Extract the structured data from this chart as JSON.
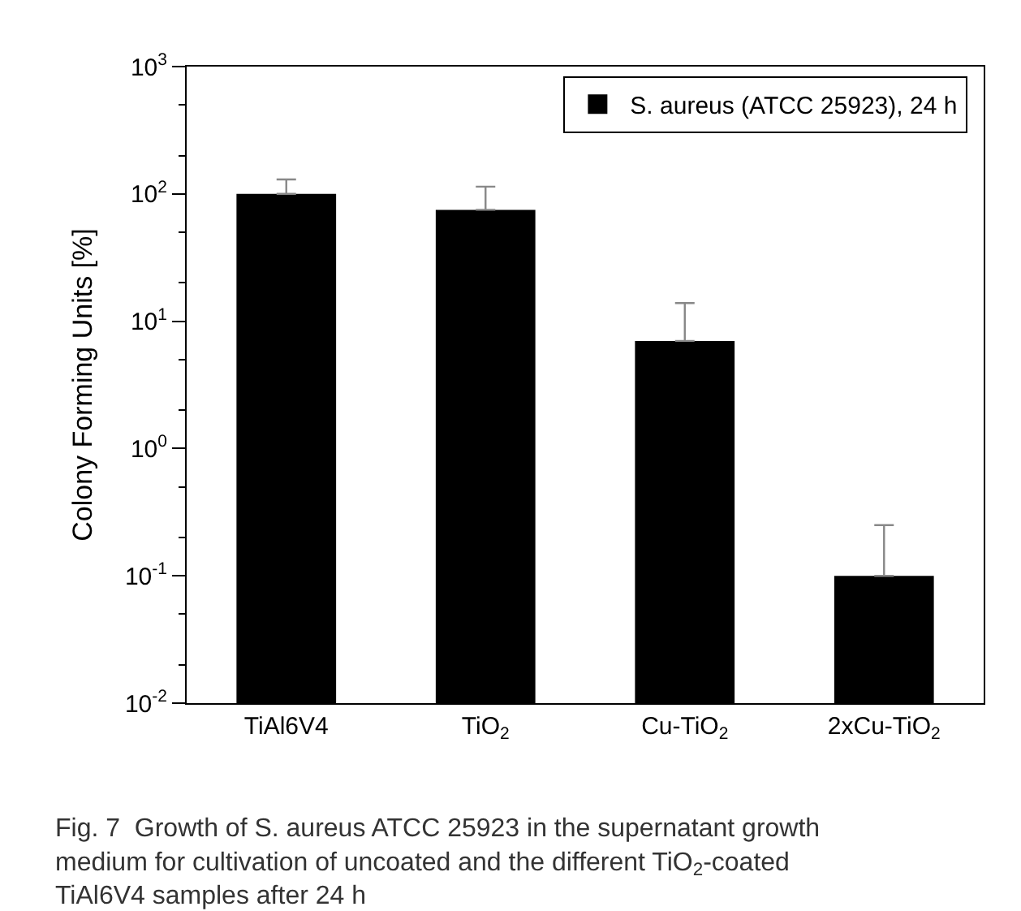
{
  "chart_data": {
    "type": "bar",
    "ylabel": "Colony Forming Units [%]",
    "log": "y",
    "categories": [
      "TiAl6V4",
      "TiO$_{2}$",
      "Cu-TiO$_{2}$",
      "2xCu-TiO$_{2}$"
    ],
    "series": [
      {
        "name": "S. aureus (ATCC 25923), 24 h",
        "color": "#000000",
        "values": [
          100,
          75,
          7.0,
          0.1
        ],
        "errors": [
          [
            100,
            130
          ],
          [
            75,
            114
          ],
          [
            7.0,
            13.9
          ],
          [
            0.1,
            0.25
          ]
        ]
      }
    ],
    "ylim": [
      0.01,
      1000
    ],
    "yticks": [
      {
        "value": 0.01,
        "label": "10$^{-2}$"
      },
      {
        "value": 0.1,
        "label": "10$^{-1}$"
      },
      {
        "value": 1,
        "label": "10$^{0}$"
      },
      {
        "value": 10,
        "label": "10$^{1}$"
      },
      {
        "value": 100,
        "label": "10$^{2}$"
      },
      {
        "value": 1000,
        "label": "10$^{3}$"
      }
    ],
    "legend": "top right",
    "annotations": [
      "Fig. 7  Growth of S. aureus ATCC 25923 in the supernatant growth medium for cultivation of uncoated and the different TiO$_{2}$-coated TiAl6V4 samples after 24 h"
    ]
  }
}
